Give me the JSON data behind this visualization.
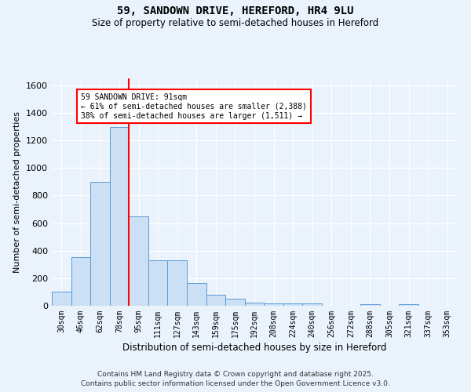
{
  "title_line1": "59, SANDOWN DRIVE, HEREFORD, HR4 9LU",
  "title_line2": "Size of property relative to semi-detached houses in Hereford",
  "xlabel": "Distribution of semi-detached houses by size in Hereford",
  "ylabel": "Number of semi-detached properties",
  "bin_labels": [
    "30sqm",
    "46sqm",
    "62sqm",
    "78sqm",
    "95sqm",
    "111sqm",
    "127sqm",
    "143sqm",
    "159sqm",
    "175sqm",
    "192sqm",
    "208sqm",
    "224sqm",
    "240sqm",
    "256sqm",
    "272sqm",
    "288sqm",
    "305sqm",
    "321sqm",
    "337sqm",
    "353sqm"
  ],
  "bar_heights": [
    100,
    350,
    900,
    1300,
    650,
    330,
    330,
    165,
    80,
    50,
    25,
    15,
    15,
    15,
    0,
    0,
    10,
    0,
    10,
    0,
    0
  ],
  "bar_color": "#cce0f5",
  "bar_edge_color": "#5b9bd5",
  "red_line_index": 3,
  "annotation_text": "59 SANDOWN DRIVE: 91sqm\n← 61% of semi-detached houses are smaller (2,388)\n38% of semi-detached houses are larger (1,511) →",
  "ylim": [
    0,
    1650
  ],
  "yticks": [
    0,
    200,
    400,
    600,
    800,
    1000,
    1200,
    1400,
    1600
  ],
  "footer_line1": "Contains HM Land Registry data © Crown copyright and database right 2025.",
  "footer_line2": "Contains public sector information licensed under the Open Government Licence v3.0.",
  "bg_color": "#eaf2fb",
  "plot_bg_color": "#eaf2fb"
}
